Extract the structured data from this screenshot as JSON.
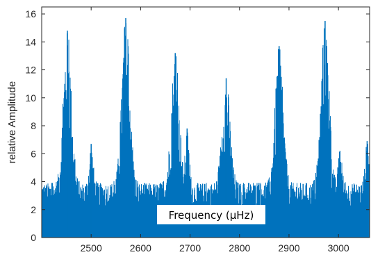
{
  "chart_data": {
    "type": "bar",
    "title": "",
    "xlabel": "",
    "ylabel": "relative Amplitude",
    "annotation": "Frequency (µHz)",
    "xlim": [
      2400,
      3063
    ],
    "ylim": [
      0,
      16.5
    ],
    "xticks": [
      2500,
      2600,
      2700,
      2800,
      2900,
      3000
    ],
    "yticks": [
      0,
      2,
      4,
      6,
      8,
      10,
      12,
      14,
      16
    ],
    "grid": false,
    "color": "#0072BD",
    "baseline_level": 3.9,
    "peaks": [
      {
        "x": 2452,
        "y": 14.8
      },
      {
        "x": 2500,
        "y": 6.7
      },
      {
        "x": 2570,
        "y": 15.7
      },
      {
        "x": 2670,
        "y": 13.2
      },
      {
        "x": 2694,
        "y": 7.8
      },
      {
        "x": 2773,
        "y": 11.4
      },
      {
        "x": 2880,
        "y": 13.7
      },
      {
        "x": 2973,
        "y": 15.5
      },
      {
        "x": 3003,
        "y": 6.2
      },
      {
        "x": 3058,
        "y": 6.9
      }
    ]
  }
}
